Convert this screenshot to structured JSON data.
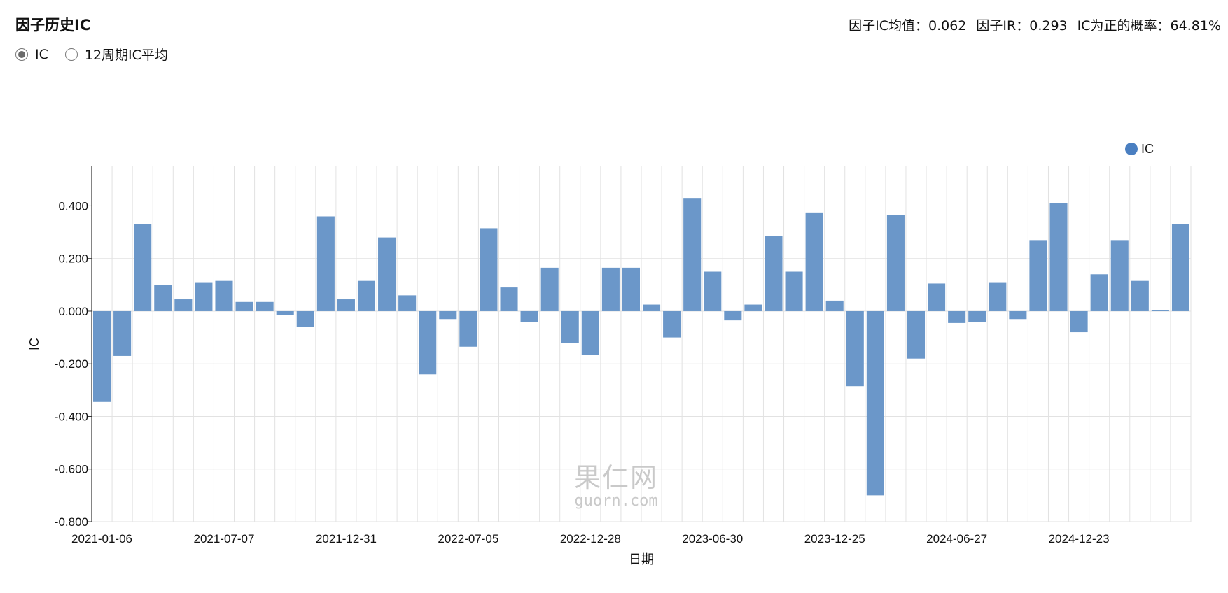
{
  "header": {
    "title": "因子历史IC",
    "stats": {
      "ic_mean": "因子IC均值：0.062",
      "ir": "因子IR：0.293",
      "positive_prob": "IC为正的概率：64.81%"
    }
  },
  "radio_options": {
    "ic": "IC",
    "ic_avg12": "12周期IC平均",
    "selected": "ic"
  },
  "watermark": {
    "cn": "果仁网",
    "en": "guorn.com"
  },
  "colors": {
    "bar": "#6b97c9",
    "legend_dot": "#4a7fc1",
    "grid": "#e2e2e2"
  },
  "chart_data": {
    "type": "bar",
    "xlabel": "日期",
    "ylabel": "IC",
    "ylim": [
      -0.8,
      0.55
    ],
    "yticks": [
      -0.8,
      -0.6,
      -0.4,
      -0.2,
      0,
      0.2,
      0.4
    ],
    "ytick_labels": [
      "-0.800",
      "-0.600",
      "-0.400",
      "-0.200",
      "0.000",
      "0.200",
      "0.400"
    ],
    "xtick_labels": [
      "2021-01-06",
      "2021-07-07",
      "2021-12-31",
      "2022-07-05",
      "2022-12-28",
      "2023-06-30",
      "2023-12-25",
      "2024-06-27",
      "2024-12-23"
    ],
    "xtick_every": 6,
    "legend": {
      "position": "top-right"
    },
    "grid": true,
    "series": [
      {
        "name": "IC",
        "values": [
          -0.345,
          -0.17,
          0.33,
          0.1,
          0.045,
          0.11,
          0.115,
          0.035,
          0.035,
          -0.015,
          -0.06,
          0.36,
          0.045,
          0.115,
          0.28,
          0.06,
          -0.24,
          -0.03,
          -0.135,
          0.315,
          0.09,
          -0.04,
          0.165,
          -0.12,
          -0.165,
          0.165,
          0.165,
          0.025,
          -0.1,
          0.43,
          0.15,
          -0.035,
          0.025,
          0.285,
          0.15,
          0.375,
          0.04,
          -0.285,
          -0.7,
          0.365,
          -0.18,
          0.105,
          -0.045,
          -0.04,
          0.11,
          -0.03,
          0.27,
          0.41,
          -0.08,
          0.14,
          0.27,
          0.115,
          0.005,
          0.33
        ]
      }
    ]
  }
}
